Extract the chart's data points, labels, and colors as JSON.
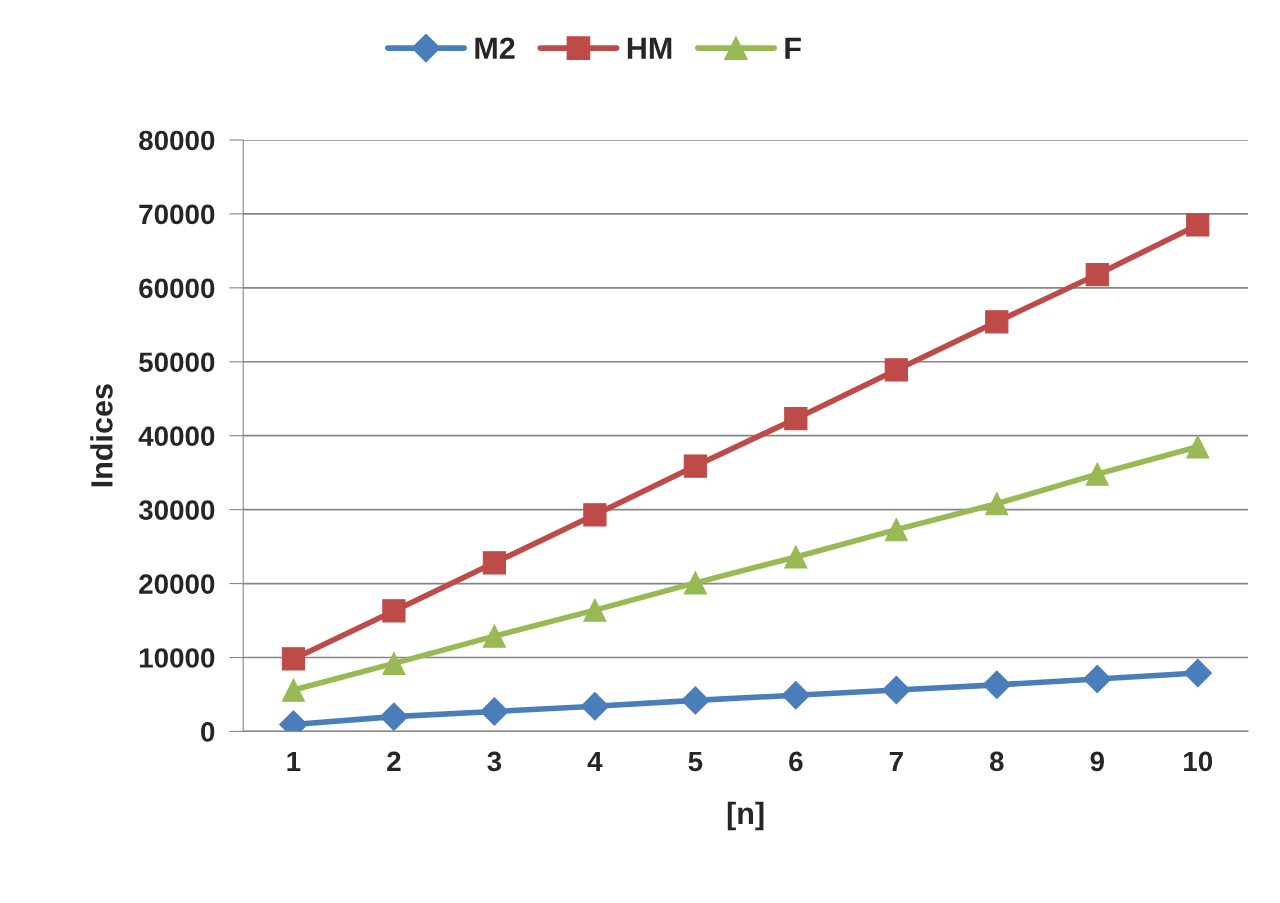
{
  "chart_data": {
    "type": "line",
    "xlabel": "[n]",
    "ylabel": "Indices",
    "categories": [
      "1",
      "2",
      "3",
      "4",
      "5",
      "6",
      "7",
      "8",
      "9",
      "10"
    ],
    "series": [
      {
        "name": "M2",
        "color": "#4a7ebb",
        "marker": "diamond",
        "values": [
          950,
          2000,
          2700,
          3400,
          4200,
          4900,
          5600,
          6300,
          7100,
          7900
        ]
      },
      {
        "name": "HM",
        "color": "#be4b48",
        "marker": "square",
        "values": [
          9800,
          16300,
          22800,
          29300,
          35900,
          42300,
          48900,
          55400,
          61800,
          68500
        ]
      },
      {
        "name": "F",
        "color": "#98b954",
        "marker": "triangle",
        "values": [
          5600,
          9200,
          12900,
          16400,
          20100,
          23600,
          27300,
          30800,
          34800,
          38500
        ]
      }
    ],
    "ylim": [
      0,
      80000
    ],
    "yticks": [
      0,
      10000,
      20000,
      30000,
      40000,
      50000,
      60000,
      70000,
      80000
    ],
    "grid": "y",
    "legend": "top",
    "line_style": "solid"
  }
}
